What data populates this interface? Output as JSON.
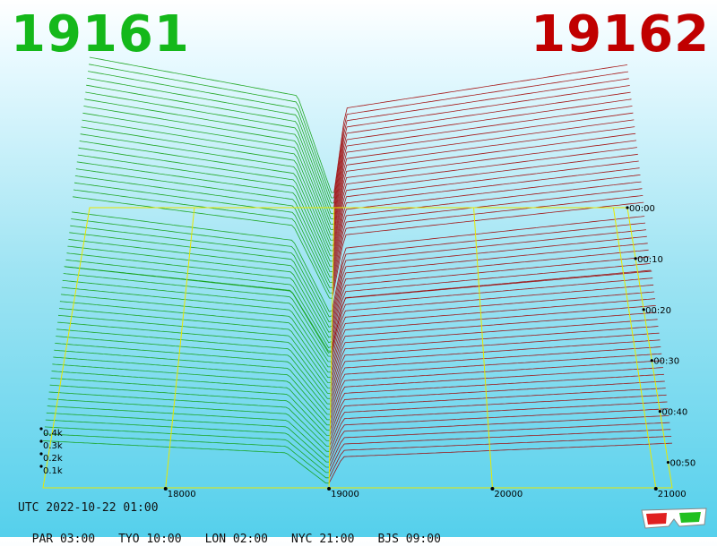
{
  "header": {
    "left_title": "19161",
    "right_title": "19162",
    "left_color": "#14b81a",
    "right_color": "#c00000"
  },
  "footer": {
    "utc": "UTC 2022-10-22 01:00",
    "timezones": [
      "PAR 03:00",
      "TYO 10:00",
      "LON 02:00",
      "NYC 21:00",
      "BJS 09:00"
    ]
  },
  "icons": {
    "corner": "3d-glasses-icon"
  },
  "chart_data": {
    "type": "3d-waterfall",
    "x_ticks": [
      18000,
      19000,
      20000,
      21000
    ],
    "x_tick_labels": [
      "18000",
      "19000",
      "20000",
      "21000"
    ],
    "x_range": [
      17250,
      21100
    ],
    "z_ticks": [
      "0.1k",
      "0.2k",
      "0.3k",
      "0.4k"
    ],
    "z_values": [
      100,
      200,
      300,
      400
    ],
    "time_ticks": [
      "00:00",
      "00:10",
      "00:20",
      "00:30",
      "00:40",
      "00:50"
    ],
    "time_range_minutes": [
      0,
      55
    ],
    "series": [
      {
        "name": "19161",
        "color": "#10a010",
        "x_range": [
          17250,
          19000
        ]
      },
      {
        "name": "19162",
        "color": "#a00000",
        "x_range": [
          19000,
          21100
        ]
      }
    ],
    "grid_color": "#e8e800"
  }
}
